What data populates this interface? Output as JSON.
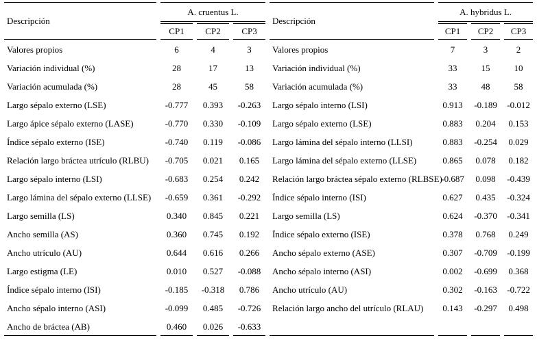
{
  "page": {
    "background": "#ffffff",
    "text_color": "#000000",
    "rule_color": "#000000"
  },
  "tables": [
    {
      "desc_header": "Descripción",
      "species": "A. cruentus L.",
      "cp_headers": [
        "CP1",
        "CP2",
        "CP3"
      ],
      "rows": [
        {
          "label": "Valores propios",
          "values": [
            "6",
            "4",
            "3"
          ]
        },
        {
          "label": "Variación individual (%)",
          "values": [
            "28",
            "17",
            "13"
          ]
        },
        {
          "label": "Variación acumulada (%)",
          "values": [
            "28",
            "45",
            "58"
          ]
        },
        {
          "label": "Largo sépalo externo (LSE)",
          "values": [
            "-0.777",
            "0.393",
            "-0.263"
          ]
        },
        {
          "label": "Largo ápice sépalo externo (LASE)",
          "values": [
            "-0.770",
            "0.330",
            "-0.109"
          ]
        },
        {
          "label": "Índice sépalo externo (ISE)",
          "values": [
            "-0.740",
            "0.119",
            "-0.086"
          ]
        },
        {
          "label": "Relación largo bráctea utrículo (RLBU)",
          "values": [
            "-0.705",
            "0.021",
            "0.165"
          ]
        },
        {
          "label": "Largo sépalo interno (LSI)",
          "values": [
            "-0.683",
            "0.254",
            "0.242"
          ]
        },
        {
          "label": "Largo lámina del sépalo externo (LLSE)",
          "values": [
            "-0.659",
            "0.361",
            "-0.292"
          ]
        },
        {
          "label": "Largo semilla (LS)",
          "values": [
            "0.340",
            "0.845",
            "0.221"
          ]
        },
        {
          "label": "Ancho semilla (AS)",
          "values": [
            "0.360",
            "0.745",
            "0.192"
          ]
        },
        {
          "label": "Ancho utrículo (AU)",
          "values": [
            "0.644",
            "0.616",
            "0.266"
          ]
        },
        {
          "label": "Largo estigma (LE)",
          "values": [
            "0.010",
            "0.527",
            "-0.088"
          ]
        },
        {
          "label": "Índice sépalo interno (ISI)",
          "values": [
            "-0.185",
            "-0.318",
            "0.786"
          ]
        },
        {
          "label": "Ancho sépalo interno (ASI)",
          "values": [
            "-0.099",
            "0.485",
            "-0.726"
          ]
        },
        {
          "label": "Ancho de bráctea (AB)",
          "values": [
            "0.460",
            "0.026",
            "-0.633"
          ]
        }
      ]
    },
    {
      "desc_header": "Descripción",
      "species": "A. hybridus L.",
      "cp_headers": [
        "CP1",
        "CP2",
        "CP3"
      ],
      "rows": [
        {
          "label": "Valores propios",
          "values": [
            "7",
            "3",
            "2"
          ]
        },
        {
          "label": "Variación individual (%)",
          "values": [
            "33",
            "15",
            "10"
          ]
        },
        {
          "label": "Variación acumulada (%)",
          "values": [
            "33",
            "48",
            "58"
          ]
        },
        {
          "label": "Largo sépalo interno (LSI)",
          "values": [
            "0.913",
            "-0.189",
            "-0.012"
          ]
        },
        {
          "label": "Largo sépalo externo (LSE)",
          "values": [
            "0.883",
            "0.204",
            "0.153"
          ]
        },
        {
          "label": "Largo lámina del sépalo interno (LLSI)",
          "values": [
            "0.883",
            "-0.254",
            "0.029"
          ]
        },
        {
          "label": "Largo lámina del sépalo externo (LLSE)",
          "values": [
            "0.865",
            "0.078",
            "0.182"
          ]
        },
        {
          "label": "Relación largo bráctea sépalo externo (RLBSE)",
          "values": [
            "-0.687",
            "0.098",
            "-0.439"
          ]
        },
        {
          "label": "Índice sépalo interno (ISI)",
          "values": [
            "0.627",
            "0.435",
            "-0.324"
          ]
        },
        {
          "label": "Largo semilla (LS)",
          "values": [
            "0.624",
            "-0.370",
            "-0.341"
          ]
        },
        {
          "label": "Índice sépalo externo (ISE)",
          "values": [
            "0.378",
            "0.768",
            "0.249"
          ]
        },
        {
          "label": "Ancho sépalo externo (ASE)",
          "values": [
            "0.307",
            "-0.709",
            "-0.199"
          ]
        },
        {
          "label": "Ancho sépalo interno (ASI)",
          "values": [
            "0.002",
            "-0.699",
            "0.368"
          ]
        },
        {
          "label": "Ancho utrículo (AU)",
          "values": [
            "0.302",
            "-0.163",
            "-0.722"
          ]
        },
        {
          "label": "Relación largo ancho del utrículo (RLAU)",
          "values": [
            "0.143",
            "-0.297",
            "0.498"
          ]
        }
      ]
    }
  ]
}
